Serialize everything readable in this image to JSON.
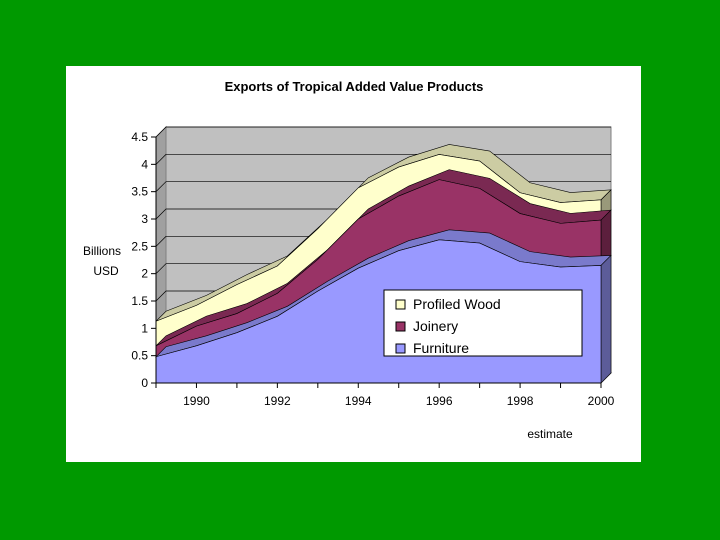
{
  "chart_data": {
    "type": "area",
    "stacked": true,
    "title": "Exports of Tropical Added Value Products",
    "ylabel_line1": "Billions",
    "ylabel_line2": "USD",
    "xlabel": "",
    "annotation": "estimate",
    "x": [
      1989,
      1990,
      1991,
      1992,
      1993,
      1994,
      1995,
      1996,
      1997,
      1998,
      1999,
      2000
    ],
    "x_tick_labels": [
      "1990",
      "1992",
      "1994",
      "1996",
      "1998",
      "2000"
    ],
    "x_tick_values": [
      1990,
      1992,
      1994,
      1996,
      1998,
      2000
    ],
    "y_tick_labels": [
      "0",
      "0.5",
      "1",
      "1.5",
      "2",
      "2.5",
      "3",
      "3.5",
      "4",
      "4.5"
    ],
    "ylim": [
      0,
      4.5
    ],
    "grid": true,
    "legend_position": "bottom-right",
    "series": [
      {
        "name": "Furniture",
        "color": "#9999ff",
        "values": [
          0.48,
          0.68,
          0.92,
          1.22,
          1.68,
          2.1,
          2.42,
          2.62,
          2.56,
          2.22,
          2.12,
          2.15
        ]
      },
      {
        "name": "Joinery",
        "color": "#993366",
        "values": [
          0.2,
          0.36,
          0.35,
          0.42,
          0.58,
          0.9,
          1.0,
          1.1,
          1.0,
          0.88,
          0.8,
          0.83
        ]
      },
      {
        "name": "Profiled Wood",
        "color": "#ffffcc",
        "values": [
          0.45,
          0.38,
          0.53,
          0.5,
          0.56,
          0.57,
          0.53,
          0.46,
          0.5,
          0.38,
          0.38,
          0.37
        ]
      }
    ]
  }
}
